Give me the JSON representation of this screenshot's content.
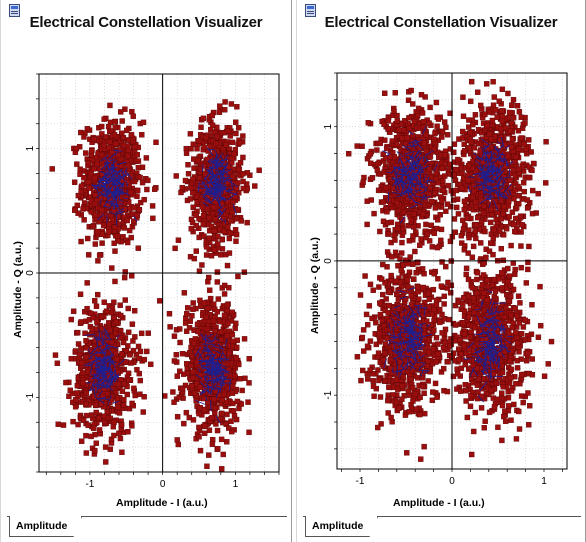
{
  "panels": [
    {
      "title": "Electrical Constellation Visualizer",
      "tab_label": "Amplitude",
      "icon": "window-document-icon",
      "chart_data": {
        "type": "scatter",
        "xlabel": "Amplitude - I (a.u.)",
        "ylabel": "Amplitude - Q (a.u.)",
        "xlim": [
          -1.7,
          1.6
        ],
        "ylim": [
          -1.6,
          1.6
        ],
        "xticks": [
          "-1",
          "0",
          "1"
        ],
        "yticks": [
          "1",
          "0",
          "-1"
        ],
        "grid": true,
        "marker_color": "#9b0e0e",
        "core_color": "#1f1f8f",
        "clusters": [
          {
            "center": [
              -0.7,
              0.72
            ],
            "spread": [
              0.27,
              0.33
            ],
            "count": 700
          },
          {
            "center": [
              0.75,
              0.72
            ],
            "spread": [
              0.24,
              0.33
            ],
            "count": 700
          },
          {
            "center": [
              -0.8,
              -0.78
            ],
            "spread": [
              0.28,
              0.34
            ],
            "count": 700
          },
          {
            "center": [
              0.68,
              -0.75
            ],
            "spread": [
              0.26,
              0.34
            ],
            "count": 700
          }
        ]
      }
    },
    {
      "title": "Electrical Constellation Visualizer",
      "tab_label": "Amplitude",
      "icon": "window-document-icon",
      "chart_data": {
        "type": "scatter",
        "xlabel": "Amplitude - I (a.u.)",
        "ylabel": "Amplitude - Q (a.u.)",
        "xlim": [
          -1.25,
          1.25
        ],
        "ylim": [
          -1.55,
          1.4
        ],
        "xticks": [
          "-1",
          "0",
          "1"
        ],
        "yticks": [
          "1",
          "0",
          "-1"
        ],
        "grid": true,
        "marker_color": "#9b0e0e",
        "core_color": "#1f1f8f",
        "clusters": [
          {
            "center": [
              -0.45,
              0.65
            ],
            "spread": [
              0.28,
              0.33
            ],
            "count": 800
          },
          {
            "center": [
              0.45,
              0.65
            ],
            "spread": [
              0.26,
              0.33
            ],
            "count": 800
          },
          {
            "center": [
              -0.48,
              -0.58
            ],
            "spread": [
              0.27,
              0.36
            ],
            "count": 800
          },
          {
            "center": [
              0.42,
              -0.6
            ],
            "spread": [
              0.26,
              0.37
            ],
            "count": 800
          }
        ]
      }
    }
  ]
}
